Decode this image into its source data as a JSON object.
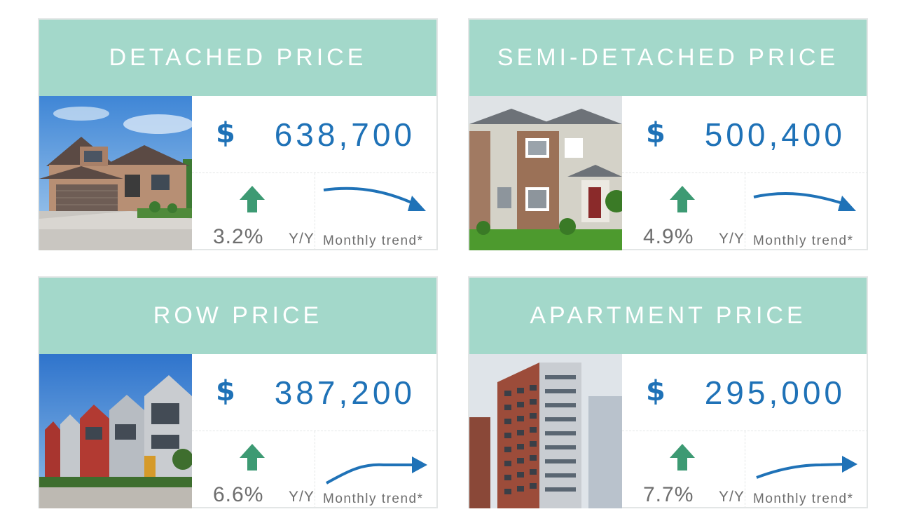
{
  "colors": {
    "header_bg": "#a3d8ca",
    "price_blue": "#1f72b7",
    "arrow_green": "#3d9a73",
    "muted_text": "#6e6e6e"
  },
  "cards": [
    {
      "title": "DETACHED PRICE",
      "currency": "$",
      "price": "638,700",
      "change_pct": "3.2%",
      "change_label": "Y/Y",
      "direction_icon": "up-arrow-icon",
      "trend_label": "Monthly trend*",
      "trend_direction": "down",
      "photo": "detached house photo"
    },
    {
      "title": "SEMI-DETACHED PRICE",
      "currency": "$",
      "price": "500,400",
      "change_pct": "4.9%",
      "change_label": "Y/Y",
      "direction_icon": "up-arrow-icon",
      "trend_label": "Monthly trend*",
      "trend_direction": "down",
      "photo": "semi-detached house photo"
    },
    {
      "title": "ROW PRICE",
      "currency": "$",
      "price": "387,200",
      "change_pct": "6.6%",
      "change_label": "Y/Y",
      "direction_icon": "up-arrow-icon",
      "trend_label": "Monthly trend*",
      "trend_direction": "up",
      "photo": "row houses photo"
    },
    {
      "title": "APARTMENT PRICE",
      "currency": "$",
      "price": "295,000",
      "change_pct": "7.7%",
      "change_label": "Y/Y",
      "direction_icon": "up-arrow-icon",
      "trend_label": "Monthly trend*",
      "trend_direction": "up",
      "photo": "apartment tower photo"
    }
  ]
}
